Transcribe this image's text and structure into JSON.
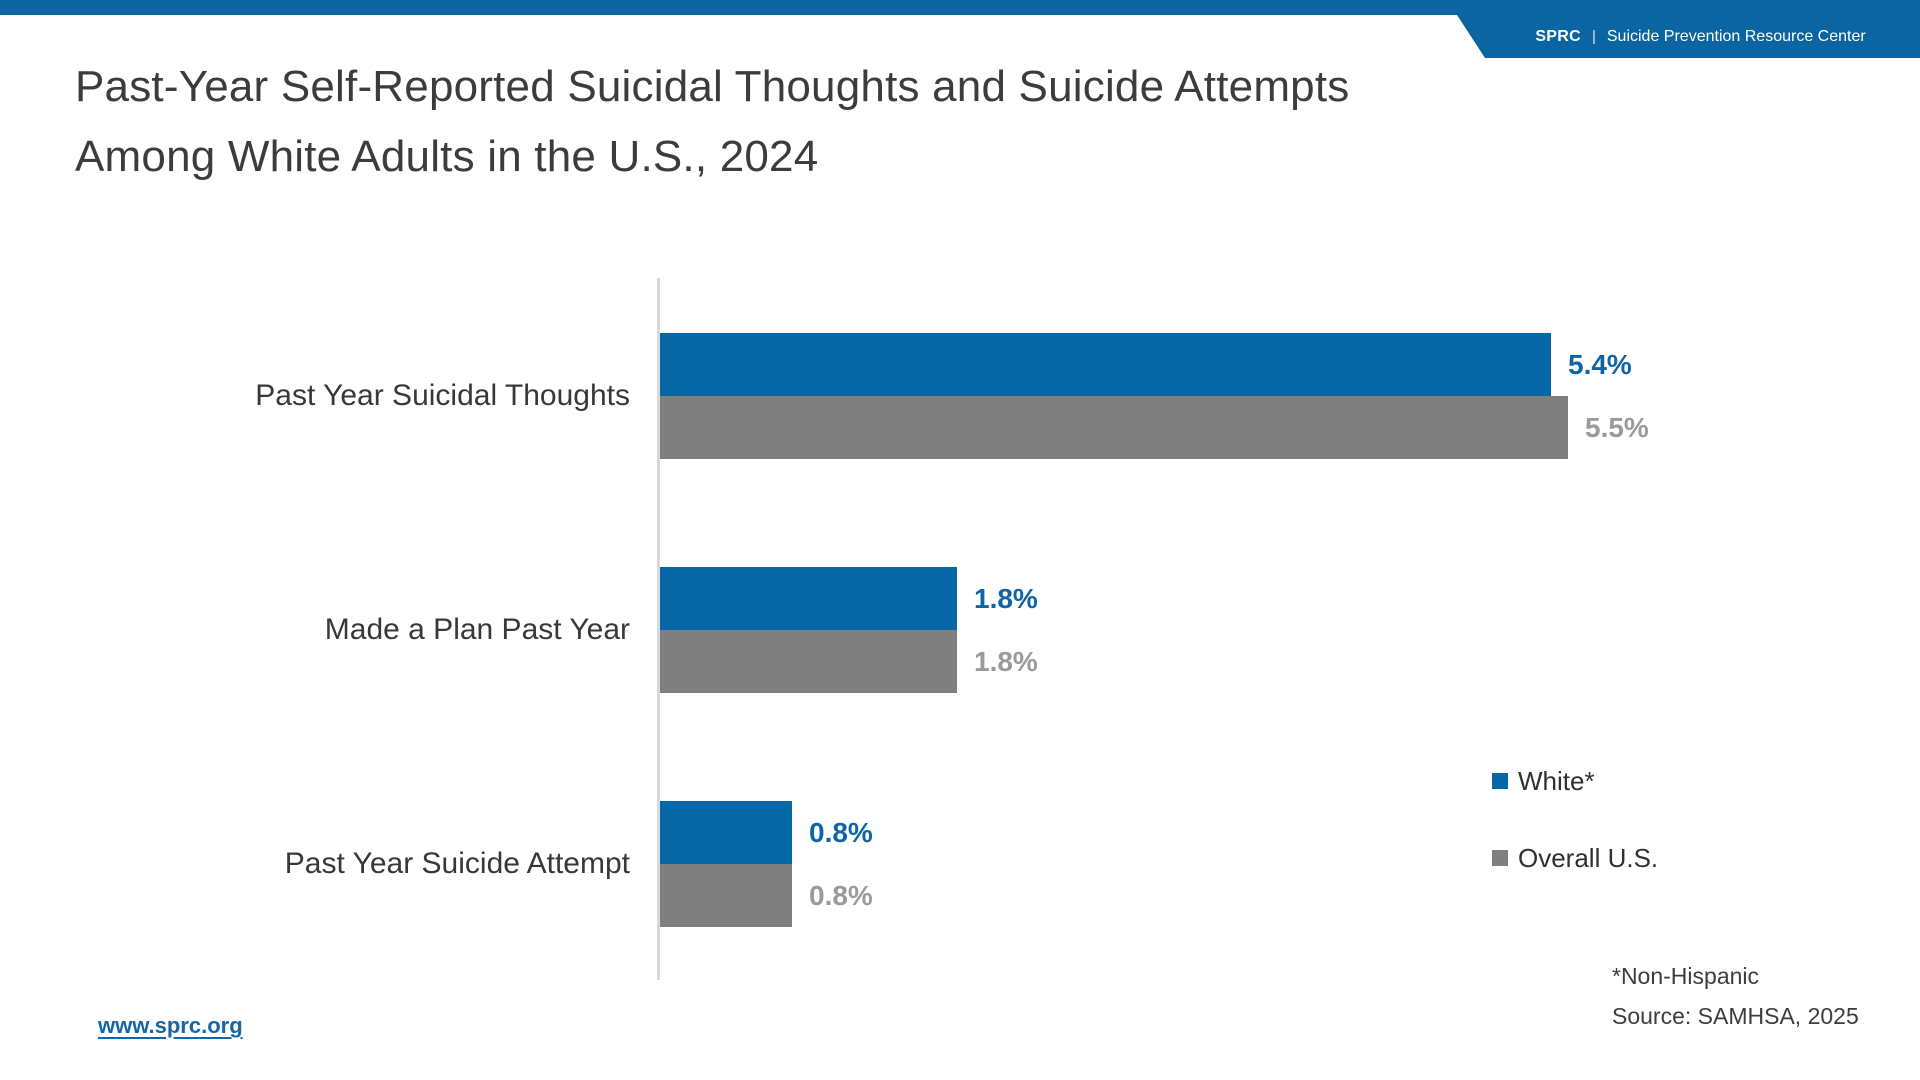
{
  "header": {
    "brand_short": "SPRC",
    "brand_separator": "|",
    "brand_full": "Suicide Prevention Resource Center"
  },
  "title": {
    "line1": "Past-Year Self-Reported Suicidal Thoughts and Suicide Attempts",
    "line2": "Among White Adults in the U.S., 2024"
  },
  "chart_data": {
    "type": "bar",
    "orientation": "horizontal",
    "title": "Past-Year Self-Reported Suicidal Thoughts and Suicide Attempts Among White Adults in the U.S., 2024",
    "categories": [
      "Past Year Suicidal Thoughts",
      "Made a Plan Past Year",
      "Past Year Suicide Attempt"
    ],
    "series": [
      {
        "name": "White*",
        "color": "#0667A6",
        "values": [
          5.4,
          1.8,
          0.8
        ],
        "labels": [
          "5.4%",
          "1.8%",
          "0.8%"
        ]
      },
      {
        "name": "Overall U.S.",
        "color": "#7F7F7F",
        "values": [
          5.5,
          1.8,
          0.8
        ],
        "labels": [
          "5.5%",
          "1.8%",
          "0.8%"
        ]
      }
    ],
    "xlim": [
      0,
      6
    ],
    "value_format": "percent",
    "grid": false,
    "legend_position": "right",
    "axis_ticks": "none"
  },
  "footnote": {
    "line1": "*Non-Hispanic",
    "line2": "Source: SAMHSA, 2025"
  },
  "footer": {
    "link": "www.sprc.org"
  },
  "colors": {
    "brand_blue": "#0C65A3",
    "bar_blue": "#0667A6",
    "bar_gray": "#7F7F7F",
    "value_label_blue": "#0F64A5",
    "value_label_gray": "#9A9A9A",
    "title_text": "#3C3C3C",
    "axis_line": "#D9D9D9"
  }
}
